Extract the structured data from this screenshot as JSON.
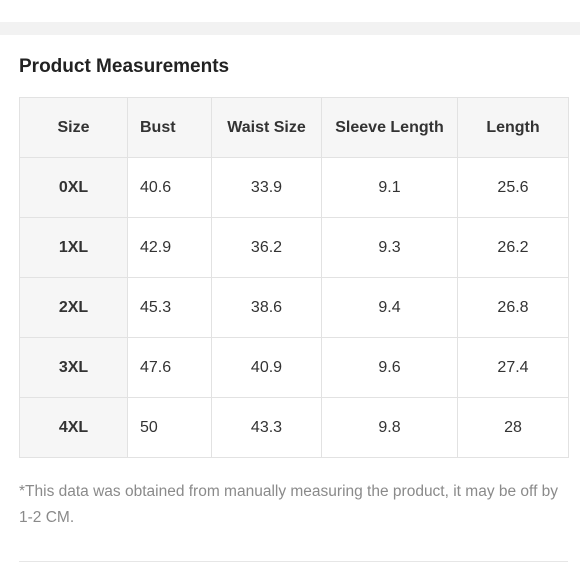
{
  "title": "Product Measurements",
  "table": {
    "headers": [
      "Size",
      "Bust",
      "Waist Size",
      "Sleeve Length",
      "Length"
    ],
    "rows": [
      [
        "0XL",
        "40.6",
        "33.9",
        "9.1",
        "25.6"
      ],
      [
        "1XL",
        "42.9",
        "36.2",
        "9.3",
        "26.2"
      ],
      [
        "2XL",
        "45.3",
        "38.6",
        "9.4",
        "26.8"
      ],
      [
        "3XL",
        "47.6",
        "40.9",
        "9.6",
        "27.4"
      ],
      [
        "4XL",
        "50",
        "43.3",
        "9.8",
        "28"
      ]
    ]
  },
  "note": "*This data was obtained from manually measuring the product, it may be off by 1-2 CM."
}
